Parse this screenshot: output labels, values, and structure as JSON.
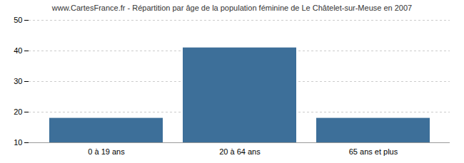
{
  "chart_data": {
    "type": "bar",
    "title": "www.CartesFrance.fr - Répartition par âge de la population féminine de Le Châtelet-sur-Meuse en 2007",
    "categories": [
      "0 à 19 ans",
      "20 à 64 ans",
      "65 ans et plus"
    ],
    "values": [
      18,
      41,
      18
    ],
    "color": "#3d6f99",
    "ylim": [
      10,
      50
    ],
    "yticks": [
      10,
      20,
      30,
      40,
      50
    ],
    "grid": true
  }
}
